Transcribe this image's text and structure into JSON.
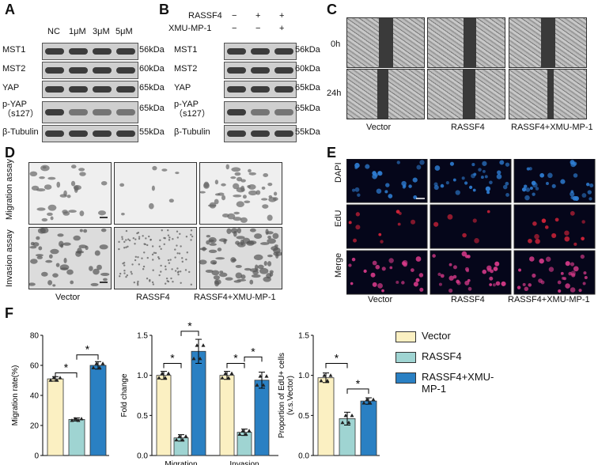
{
  "panel_labels": {
    "a": "A",
    "b": "B",
    "c": "C",
    "d": "D",
    "e": "E",
    "f": "F"
  },
  "panel_a": {
    "columns": [
      "NC",
      "1μM",
      "3μM",
      "5μM"
    ],
    "rows": [
      "MST1",
      "MST2",
      "YAP",
      "p-YAP\n（s127）",
      "β-Tubulin"
    ],
    "sizes": [
      "56kDa",
      "60kDa",
      "65kDa",
      "65kDa",
      "55kDa"
    ]
  },
  "panel_b": {
    "conditions": [
      {
        "label": "RASSF4",
        "marks": [
          "−",
          "+",
          "+"
        ]
      },
      {
        "label": "XMU-MP-1",
        "marks": [
          "−",
          "−",
          "+"
        ]
      }
    ],
    "rows": [
      "MST1",
      "MST2",
      "YAP",
      "p-YAP\n（s127）",
      "β-Tubulin"
    ],
    "sizes": [
      "56kDa",
      "60kDa",
      "65kDa",
      "65kDa",
      "55kDa"
    ]
  },
  "panel_c": {
    "row_labels": [
      "0h",
      "24h"
    ],
    "columns": [
      "Vector",
      "RASSF4",
      "RASSF4+XMU-MP-1"
    ]
  },
  "panel_d": {
    "row_labels": [
      "Migration\nassay",
      "Invasion\nassay"
    ],
    "columns": [
      "Vector",
      "RASSF4",
      "RASSF4+XMU-MP-1"
    ]
  },
  "panel_e": {
    "row_labels": [
      "DAPI",
      "EdU",
      "Merge"
    ],
    "columns": [
      "Vector",
      "RASSF4",
      "RASSF4+XMU-MP-1"
    ],
    "colors": {
      "dapi": "#2f7fd6",
      "edu": "#d8243a",
      "merge": "#d93a8a"
    }
  },
  "legend": {
    "items": [
      {
        "label": "Vector",
        "color": "#fbf0c2"
      },
      {
        "label": "RASSF4",
        "color": "#9fd4d2"
      },
      {
        "label": "RASSF4+XMU-MP-1",
        "color": "#2a80c3"
      }
    ]
  },
  "chart_data": [
    {
      "type": "bar",
      "ylabel": "Migration rate(%)",
      "ylim": [
        0,
        80
      ],
      "yticks": [
        "0",
        "20",
        "40",
        "60",
        "80"
      ],
      "series": [
        {
          "values": [
            51,
            24,
            60
          ]
        }
      ],
      "errors": [
        1.5,
        1,
        2.5
      ],
      "significance": [
        "*",
        "*"
      ]
    },
    {
      "type": "bar",
      "ylabel": "Fold change",
      "ylim": [
        0,
        1.5
      ],
      "yticks": [
        "0.0",
        "0.5",
        "1.0",
        "1.5"
      ],
      "categories": [
        "Migration",
        "Invasion"
      ],
      "series": [
        {
          "name": "Vector",
          "values": [
            1.0,
            1.0
          ]
        },
        {
          "name": "RASSF4",
          "values": [
            0.22,
            0.29
          ]
        },
        {
          "name": "RASSF4+XMU-MP-1",
          "values": [
            1.3,
            0.94
          ]
        }
      ],
      "errors": [
        [
          0.05,
          0.05
        ],
        [
          0.04,
          0.04
        ],
        [
          0.15,
          0.1
        ]
      ],
      "significance": [
        "*",
        "*",
        "*",
        "*"
      ]
    },
    {
      "type": "bar",
      "ylabel": "Proportion of EdU+ cells\n(v.s.Vector)",
      "ylim": [
        0,
        1.5
      ],
      "yticks": [
        "0.0",
        "0.5",
        "1.0",
        "1.5"
      ],
      "series": [
        {
          "values": [
            0.97,
            0.46,
            0.68
          ]
        }
      ],
      "errors": [
        0.06,
        0.08,
        0.04
      ],
      "significance": [
        "*",
        "*"
      ]
    }
  ]
}
